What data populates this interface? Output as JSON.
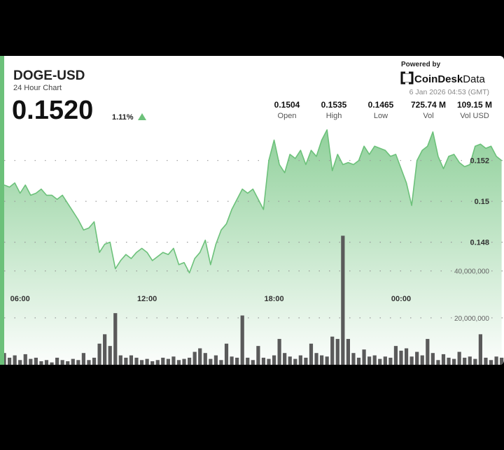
{
  "chart_data": {
    "type": "line",
    "title": "DOGE-USD",
    "subtitle": "24 Hour Chart",
    "price": "0.1520",
    "change": "1.11%",
    "powered_by": "Powered by",
    "brand": "CoinDesk",
    "brand_suffix": "Data",
    "timestamp": "6 Jan 2026 04:53 (GMT)",
    "stats": [
      {
        "value": "0.1504",
        "label": "Open"
      },
      {
        "value": "0.1535",
        "label": "High"
      },
      {
        "value": "0.1465",
        "label": "Low"
      },
      {
        "value": "725.74 M",
        "label": "Vol"
      },
      {
        "value": "109.15 M",
        "label": "Vol USD"
      }
    ],
    "categories": [
      null,
      null,
      null,
      "06:00",
      null,
      null,
      null,
      null,
      null,
      null,
      null,
      null,
      null,
      null,
      null,
      null,
      null,
      null,
      null,
      null,
      null,
      null,
      null,
      null,
      null,
      null,
      null,
      "12:00",
      null,
      null,
      null,
      null,
      null,
      null,
      null,
      null,
      null,
      null,
      null,
      null,
      null,
      null,
      null,
      null,
      null,
      null,
      null,
      null,
      null,
      null,
      null,
      "18:00",
      null,
      null,
      null,
      null,
      null,
      null,
      null,
      null,
      null,
      null,
      null,
      null,
      null,
      null,
      null,
      null,
      null,
      null,
      null,
      null,
      null,
      null,
      null,
      "00:00",
      null,
      null,
      null,
      null,
      null,
      null,
      null,
      null,
      null,
      null,
      null,
      null,
      null,
      null,
      null,
      null,
      null,
      null,
      null
    ],
    "series": [
      {
        "color": "#6cc17a",
        "values": [
          0.1508,
          0.1507,
          0.1509,
          0.1504,
          0.1508,
          0.1503,
          0.1504,
          0.1506,
          0.1503,
          0.1503,
          0.1501,
          0.1503,
          0.1499,
          0.1495,
          0.1491,
          0.1486,
          0.1487,
          0.149,
          0.1475,
          0.1479,
          0.148,
          0.1467,
          0.1471,
          0.1474,
          0.1472,
          0.1475,
          0.1477,
          0.1475,
          0.1471,
          0.1473,
          0.1475,
          0.1474,
          0.1477,
          0.1469,
          0.147,
          0.1465,
          0.1472,
          0.1475,
          0.1481,
          0.1469,
          0.1479,
          0.1486,
          0.1489,
          0.1496,
          0.1501,
          0.1506,
          0.1504,
          0.1506,
          0.1501,
          0.1496,
          0.152,
          0.153,
          0.1518,
          0.1514,
          0.1523,
          0.1521,
          0.1525,
          0.1518,
          0.1525,
          0.1522,
          0.153,
          0.1535,
          0.1515,
          0.1523,
          0.1518,
          0.1519,
          0.1518,
          0.152,
          0.1527,
          0.1523,
          0.1527,
          0.1526,
          0.1525,
          0.1522,
          0.1523,
          0.1516,
          0.1509,
          0.1498,
          0.152,
          0.1525,
          0.1527,
          0.1534,
          0.1522,
          0.1516,
          0.1522,
          0.1523,
          0.1519,
          0.1517,
          0.1518,
          0.1527,
          0.1528,
          0.1526,
          0.1527,
          0.1522,
          0.152
        ]
      },
      {
        "color": "#5a5a5a",
        "axis": "y2",
        "type": "bar",
        "values": [
          5000000,
          3000000,
          4000000,
          2000000,
          4500000,
          2500000,
          3000000,
          1500000,
          2000000,
          1000000,
          3000000,
          2000000,
          1500000,
          2500000,
          2000000,
          5000000,
          2000000,
          3000000,
          9000000,
          13000000,
          8000000,
          22000000,
          4000000,
          3000000,
          4000000,
          3000000,
          2000000,
          2500000,
          1500000,
          2000000,
          3000000,
          2500000,
          3500000,
          2000000,
          2500000,
          3000000,
          5500000,
          7000000,
          5000000,
          2500000,
          4000000,
          2000000,
          9000000,
          3500000,
          3000000,
          21000000,
          3000000,
          2000000,
          8000000,
          3000000,
          2500000,
          4000000,
          11000000,
          5000000,
          3500000,
          2500000,
          4000000,
          3000000,
          9000000,
          5000000,
          4000000,
          3500000,
          12000000,
          11000000,
          55000000,
          11000000,
          5000000,
          3000000,
          6500000,
          3500000,
          4000000,
          2500000,
          3500000,
          3000000,
          8000000,
          6000000,
          7000000,
          3500000,
          5500000,
          4000000,
          11000000,
          5000000,
          2000000,
          4500000,
          3000000,
          2500000,
          5500000,
          3000000,
          3500000,
          2500000,
          13000000,
          3000000,
          2000000,
          3500000,
          3000000
        ]
      }
    ],
    "ylim": [
      0.142,
      0.1537
    ],
    "yticks": [
      0.148,
      0.15,
      0.152
    ],
    "y2lim": [
      0,
      56000000
    ],
    "y2ticks": [
      {
        "value": 20000000,
        "label": "20,000,000"
      },
      {
        "value": 40000000,
        "label": "40,000,000"
      }
    ],
    "grid": true
  }
}
